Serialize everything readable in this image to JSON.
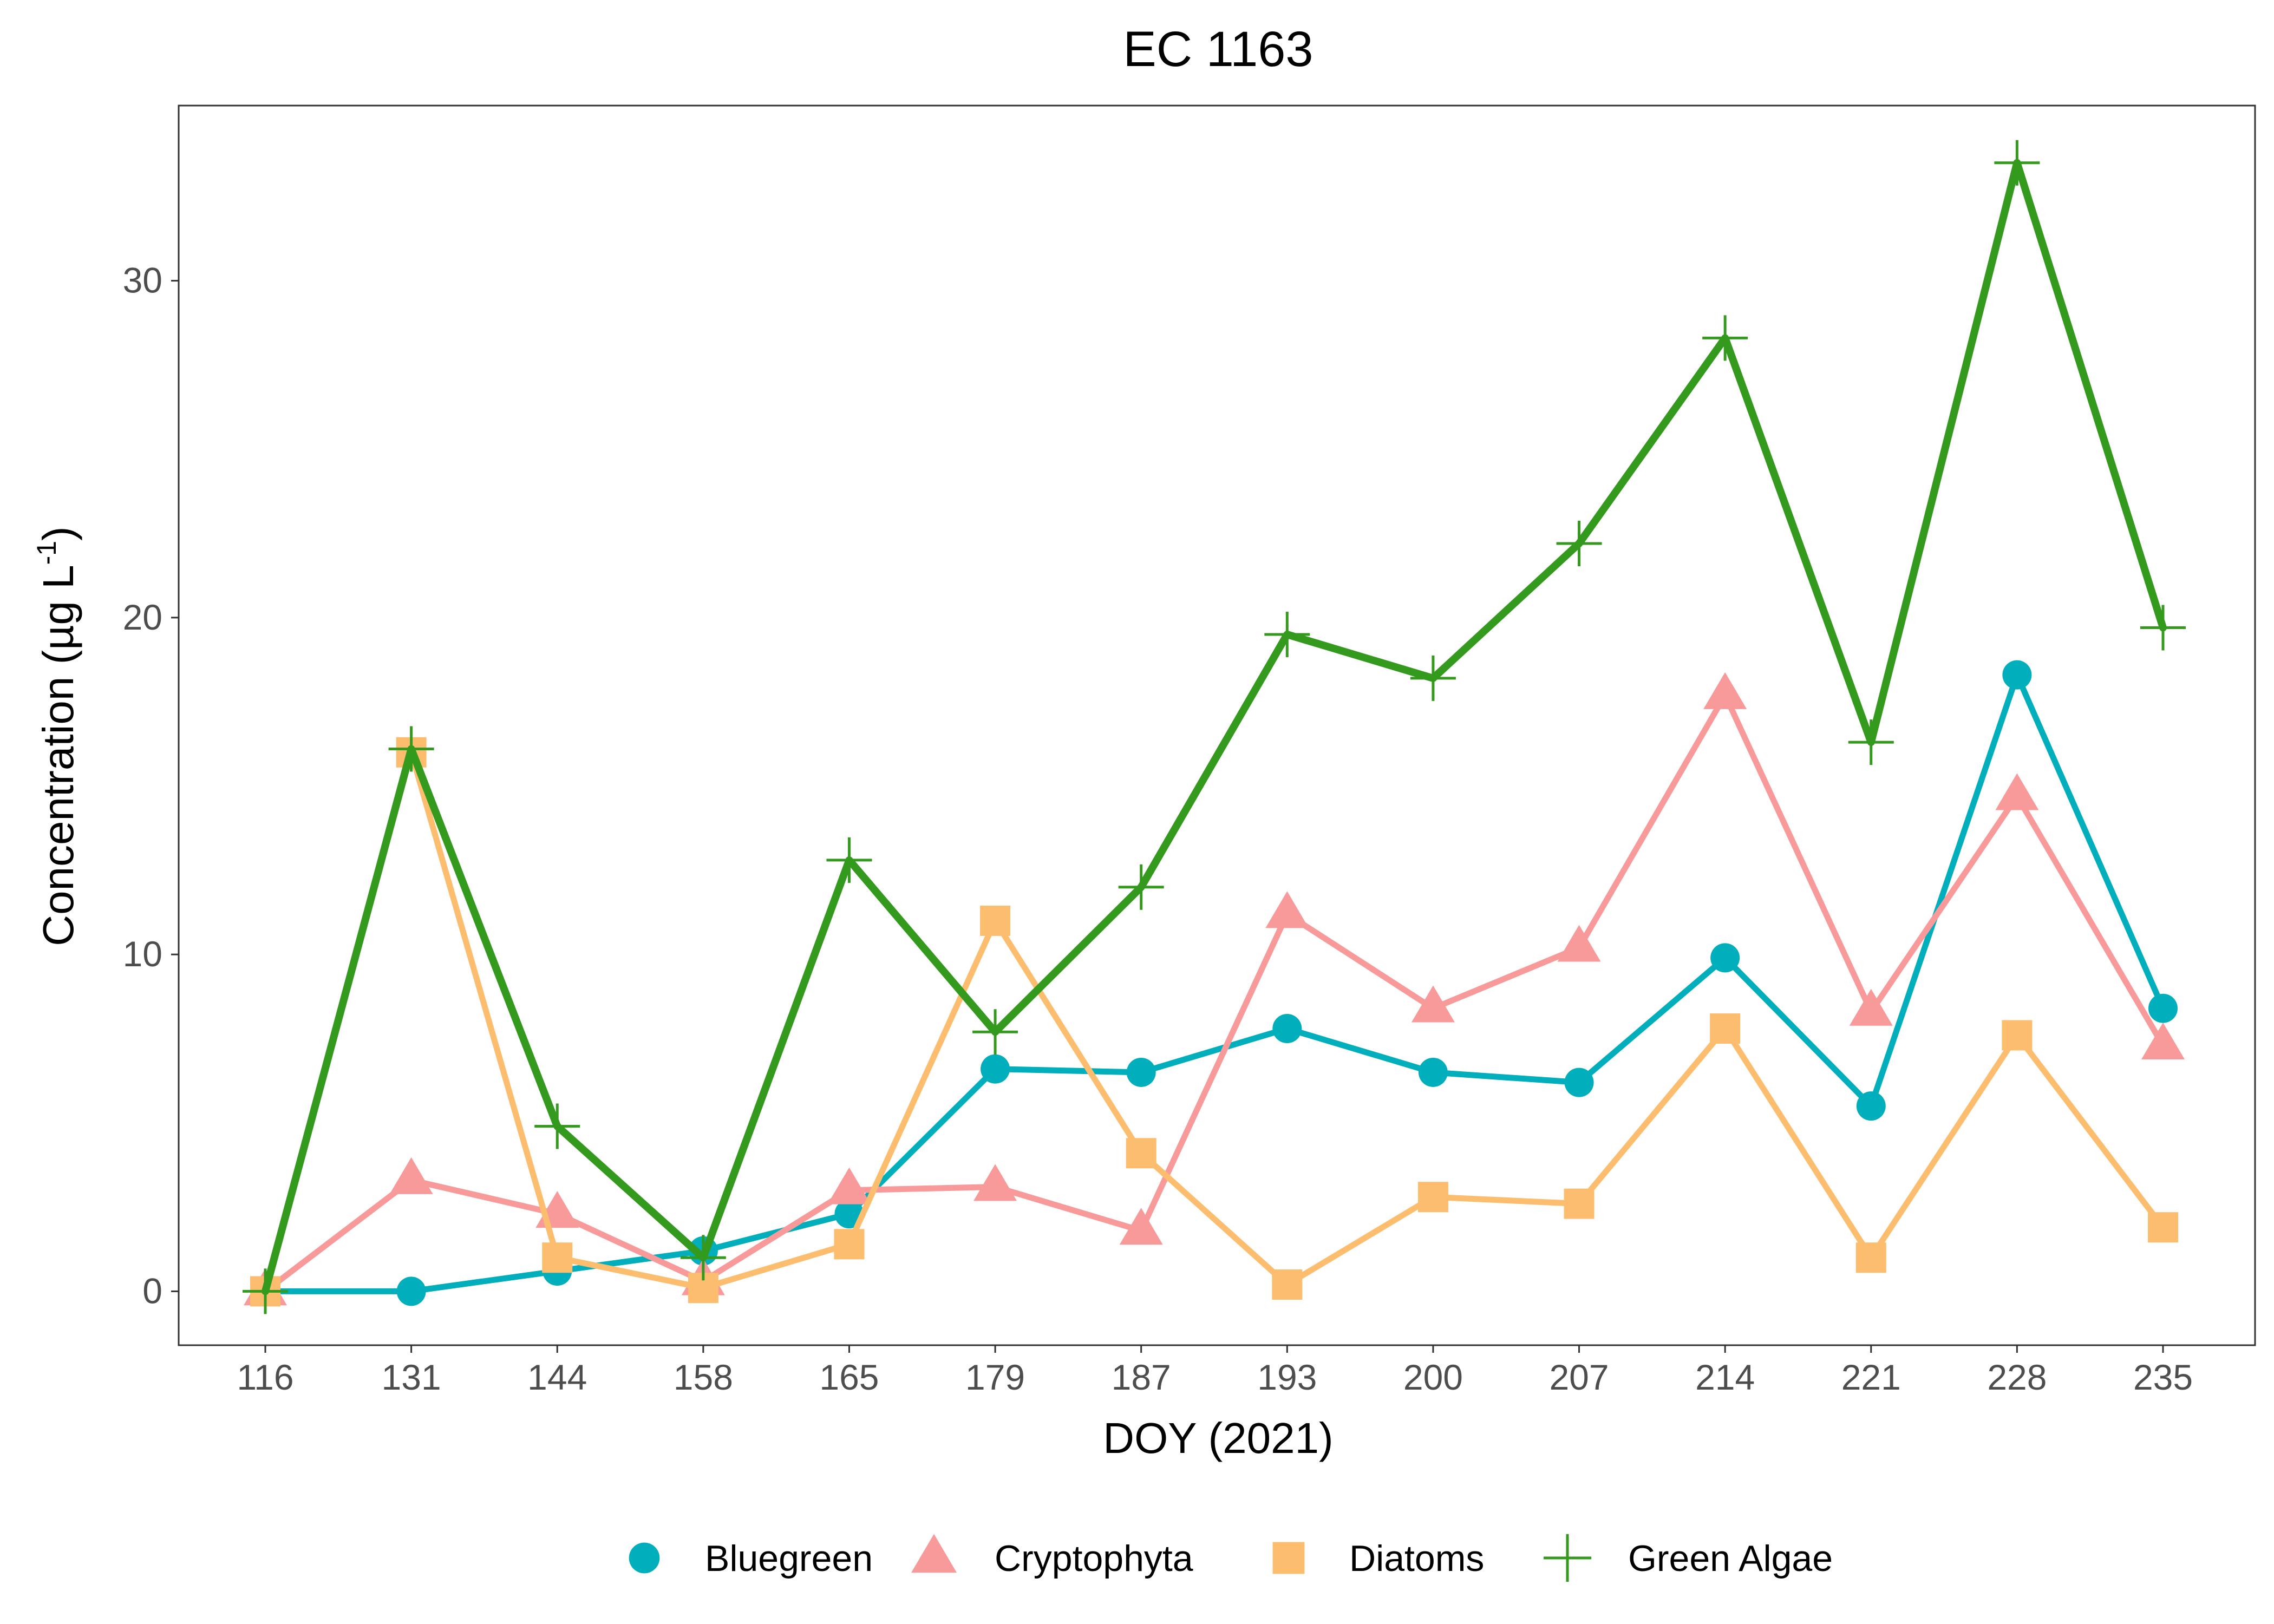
{
  "chart_data": {
    "type": "line",
    "title": "EC 1163",
    "xlabel": "DOY (2021)",
    "ylabel": "Concentration (µg L",
    "ylabel_sup": "-1",
    "ylabel_tail": ")",
    "categories": [
      "116",
      "131",
      "144",
      "158",
      "165",
      "179",
      "187",
      "193",
      "200",
      "207",
      "214",
      "221",
      "228",
      "235"
    ],
    "ylim": [
      -1.6,
      35.2
    ],
    "yticks": [
      0,
      10,
      20,
      30
    ],
    "grid": false,
    "legend_position": "bottom",
    "series": [
      {
        "name": "Bluegreen",
        "color": "#00AFBB",
        "marker": "circle",
        "values": [
          0,
          0,
          0.6,
          1.2,
          2.3,
          6.6,
          6.5,
          7.8,
          6.5,
          6.2,
          9.9,
          5.5,
          18.3,
          8.4
        ]
      },
      {
        "name": "Cryptophyta",
        "color": "#F8999A",
        "marker": "triangle",
        "values": [
          0,
          3.3,
          2.3,
          0.3,
          3.0,
          3.1,
          1.8,
          11.2,
          8.4,
          10.2,
          17.7,
          8.3,
          14.7,
          7.3
        ]
      },
      {
        "name": "Diatoms",
        "color": "#FCBE6E",
        "marker": "square",
        "values": [
          0,
          16.0,
          1.0,
          0.1,
          1.4,
          11.0,
          4.1,
          0.2,
          2.8,
          2.6,
          7.8,
          1.0,
          7.6,
          1.9
        ]
      },
      {
        "name": "Green Algae",
        "color": "#339A1D",
        "marker": "cross",
        "values": [
          0,
          16.1,
          4.9,
          1.0,
          12.8,
          7.7,
          12.0,
          19.5,
          18.2,
          22.2,
          28.3,
          16.3,
          33.5,
          19.7
        ]
      }
    ]
  }
}
